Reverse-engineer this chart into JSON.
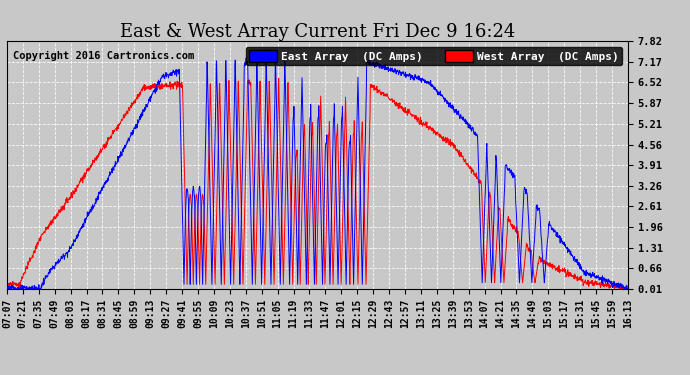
{
  "title": "East & West Array Current Fri Dec 9 16:24",
  "copyright": "Copyright 2016 Cartronics.com",
  "legend_east": "East Array  (DC Amps)",
  "legend_west": "West Array  (DC Amps)",
  "color_east": "#0000ff",
  "color_west": "#ff0000",
  "bg_color": "#c8c8c8",
  "yticks": [
    0.01,
    0.66,
    1.31,
    1.96,
    2.61,
    3.26,
    3.91,
    4.56,
    5.21,
    5.87,
    6.52,
    7.17,
    7.82
  ],
  "xtick_labels": [
    "07:07",
    "07:21",
    "07:35",
    "07:49",
    "08:03",
    "08:17",
    "08:31",
    "08:45",
    "08:59",
    "09:13",
    "09:27",
    "09:41",
    "09:55",
    "10:09",
    "10:23",
    "10:37",
    "10:51",
    "11:05",
    "11:19",
    "11:33",
    "11:47",
    "12:01",
    "12:15",
    "12:29",
    "12:43",
    "12:57",
    "13:11",
    "13:25",
    "13:39",
    "13:53",
    "14:07",
    "14:21",
    "14:35",
    "14:49",
    "15:03",
    "15:17",
    "15:31",
    "15:45",
    "15:59",
    "16:13"
  ],
  "ylim": [
    0.01,
    7.82
  ],
  "title_fontsize": 13,
  "tick_fontsize": 7,
  "legend_fontsize": 8,
  "copyright_fontsize": 7.5
}
